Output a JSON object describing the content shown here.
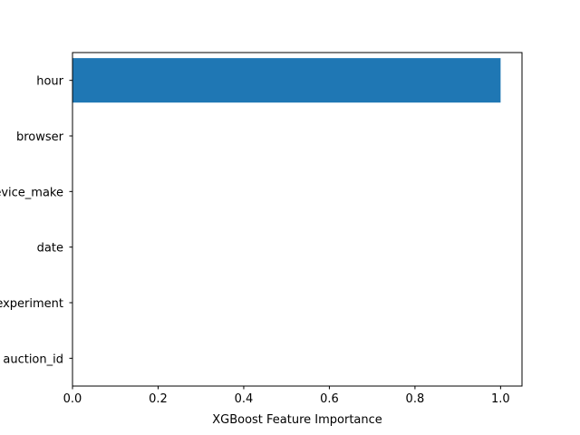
{
  "chart_data": {
    "type": "bar",
    "orientation": "horizontal",
    "categories": [
      "auction_id",
      "experiment",
      "date",
      "device_make",
      "browser",
      "hour"
    ],
    "values": [
      0.0,
      0.0,
      0.0,
      0.0,
      0.0,
      1.0
    ],
    "title": "",
    "xlabel": "XGBoost Feature Importance",
    "ylabel": "",
    "xlim": [
      0.0,
      1.05
    ],
    "xticks": [
      0.0,
      0.2,
      0.4,
      0.6,
      0.8,
      1.0
    ],
    "xtick_labels": [
      "0.0",
      "0.2",
      "0.4",
      "0.6",
      "0.8",
      "1.0"
    ],
    "grid": false,
    "bar_color": "#1f77b4"
  }
}
